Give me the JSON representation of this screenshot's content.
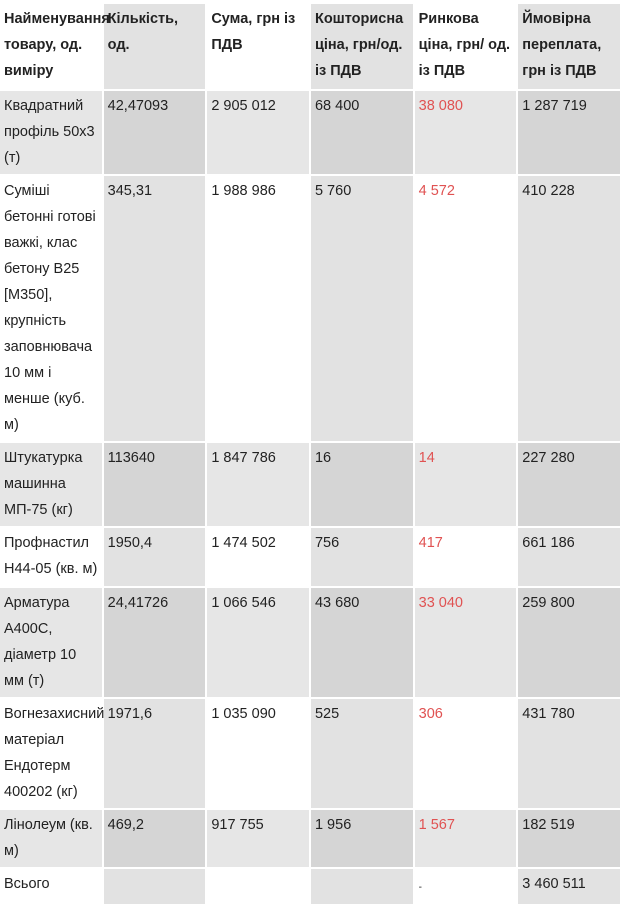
{
  "headers": [
    "Найменування товару, од. виміру",
    "Кількість, од.",
    "Сума, грн із ПДВ",
    "Кошторисна ціна, грн/од. із ПДВ",
    "Ринкова ціна, грн/ од. із ПДВ",
    "Ймовірна переплата, грн із ПДВ"
  ],
  "rows": [
    [
      "Квадратний профіль 50х3 (т)",
      "42,47093",
      "2 905 012",
      "68 400",
      "38 080",
      "1 287 719"
    ],
    [
      "Суміші бетонні готові важкі, клас бетону B25 [М350], крупність заповнювача 10 мм і менше (куб. м)",
      "345,31",
      "1 988 986",
      "5 760",
      "4 572",
      "410 228"
    ],
    [
      "Штукатурка машинна МП-75 (кг)",
      "113640",
      "1 847 786",
      "16",
      "14",
      "227 280"
    ],
    [
      "Профнастил Н44-05 (кв. м)",
      "1950,4",
      "1 474 502",
      "756",
      "417",
      "661 186"
    ],
    [
      "Арматура А400С, діаметр 10 мм (т)",
      "24,41726",
      "1 066 546",
      "43 680",
      "33 040",
      "259 800"
    ],
    [
      "Вогнезахисний матеріал Ендотерм 400202 (кг)",
      "1971,6",
      "1 035 090",
      "525",
      "306",
      "431 780"
    ],
    [
      "Лінолеум (кв. м)",
      "469,2",
      "917 755",
      "1 956",
      "1 567",
      "182 519"
    ],
    [
      "Всього",
      "",
      "",
      "",
      "-",
      "3 460 511"
    ]
  ],
  "colors": {
    "market_price": "#e05252",
    "shade": "#e2e2e2",
    "stripe": "#e6e6e6"
  }
}
